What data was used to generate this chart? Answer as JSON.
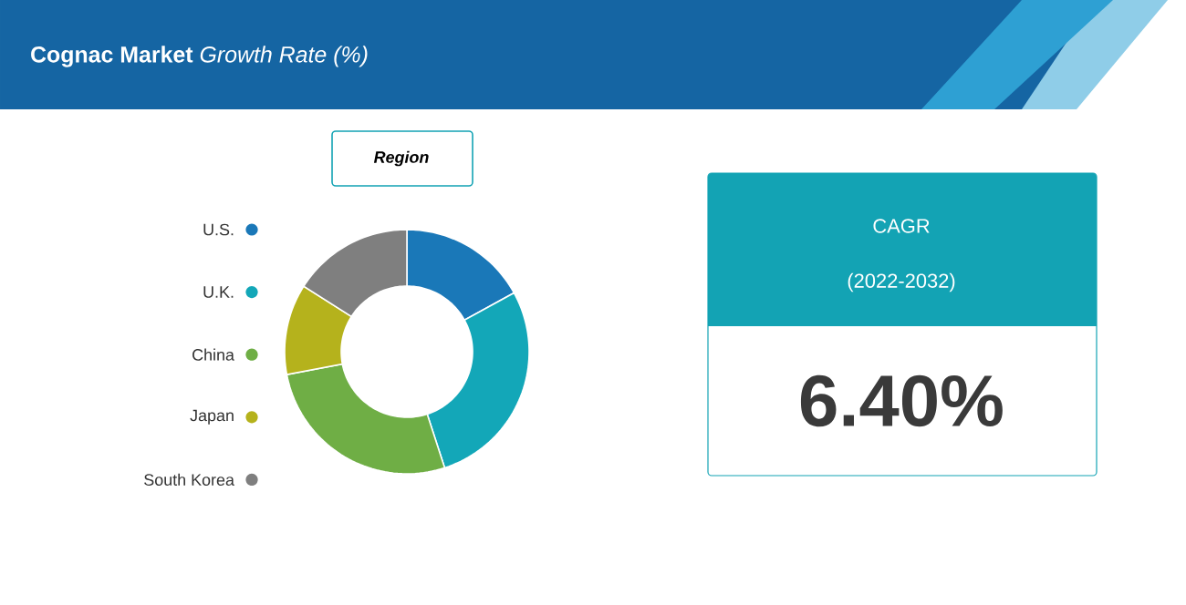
{
  "chart_data": [
    {
      "type": "donut",
      "title": "**Cognac Market** *Growth Rate (%)*",
      "legend_title": "Region",
      "legend": "left",
      "categories": [
        "U.S.",
        "U.K.",
        "China",
        "Japan",
        "South Korea"
      ],
      "values": [
        17,
        28,
        27,
        12,
        16
      ],
      "colors": [
        "#1a78b8",
        "#13a7b8",
        "#6fae45",
        "#b5b21c",
        "#7f7f7f"
      ]
    },
    {
      "type": "other",
      "title": "CAGR",
      "subtitle": "(2022-2032)",
      "annotations": [
        "6.40%"
      ]
    }
  ]
}
